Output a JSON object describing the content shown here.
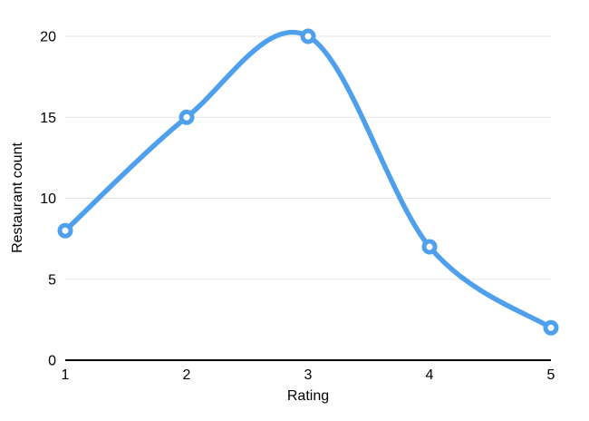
{
  "chart_data": {
    "type": "line",
    "title": "",
    "x": [
      1,
      2,
      3,
      4,
      5
    ],
    "series": [
      {
        "name": "Restaurant count",
        "values": [
          8,
          15,
          20,
          7,
          2
        ]
      }
    ],
    "xlabel": "Rating",
    "ylabel": "Restaurant count",
    "xlim": [
      1,
      5
    ],
    "ylim": [
      0,
      20
    ],
    "xticks": [
      "1",
      "2",
      "3",
      "4",
      "5"
    ],
    "yticks": [
      "0",
      "5",
      "10",
      "15",
      "20"
    ],
    "grid": true,
    "legend": false,
    "curve": "smooth",
    "marker": "open-circle",
    "colors": {
      "line": "#4FA0EC",
      "marker_fill": "#FFFFFF",
      "gridline": "#E5E5E5",
      "axis": "#000000",
      "text": "#000000",
      "background": "#FFFFFF"
    }
  }
}
